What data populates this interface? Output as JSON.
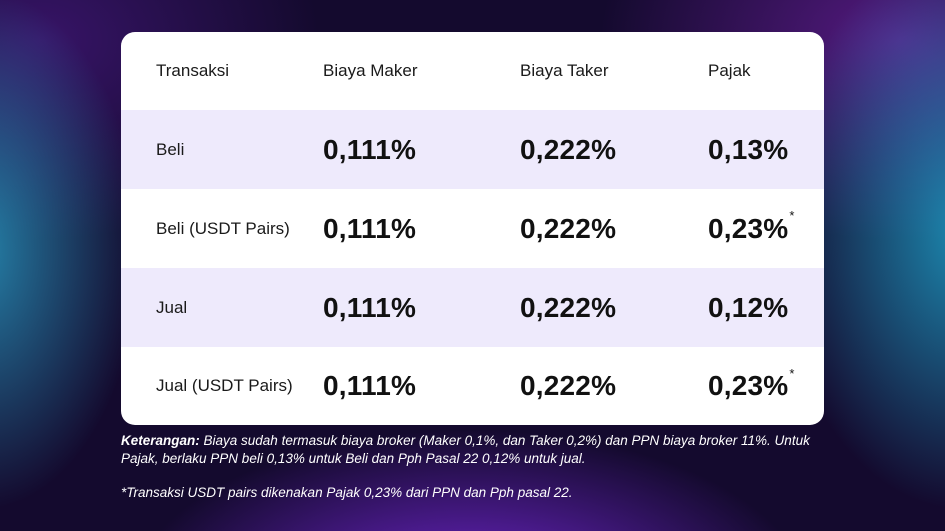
{
  "table": {
    "headers": [
      "Transaksi",
      "Biaya Maker",
      "Biaya Taker",
      "Pajak"
    ],
    "rows": [
      {
        "transaksi": "Beli",
        "maker": "0,111%",
        "taker": "0,222%",
        "pajak": "0,13%",
        "footnote": ""
      },
      {
        "transaksi": "Beli (USDT Pairs)",
        "maker": "0,111%",
        "taker": "0,222%",
        "pajak": "0,23%",
        "footnote": "*"
      },
      {
        "transaksi": "Jual",
        "maker": "0,111%",
        "taker": "0,222%",
        "pajak": "0,12%",
        "footnote": ""
      },
      {
        "transaksi": "Jual (USDT Pairs)",
        "maker": "0,111%",
        "taker": "0,222%",
        "pajak": "0,23%",
        "footnote": "*"
      }
    ]
  },
  "notes": {
    "label": "Keterangan:",
    "text": " Biaya sudah termasuk biaya broker (Maker 0,1%, dan Taker 0,2%) dan PPN biaya broker 11%. Untuk Pajak, berlaku PPN beli 0,13% untuk Beli dan Pph Pasal 22 0,12% untuk jual.",
    "footnote": "*Transaksi USDT pairs dikenakan Pajak 0,23% dari PPN dan Pph pasal 22."
  },
  "colors": {
    "card": "#ffffff",
    "row_shade": "#eeeafc",
    "background": "#140a2e",
    "accent_purple": "#7828dc",
    "accent_teal": "#2896be"
  }
}
